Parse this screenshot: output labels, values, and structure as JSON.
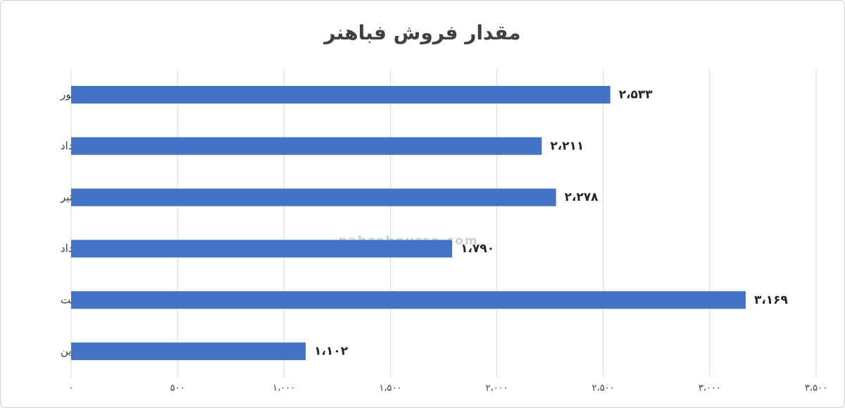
{
  "chart_data": {
    "type": "bar",
    "orientation": "horizontal",
    "title": "مقدار فروش فباهنر",
    "watermark": "nabzebourse.com",
    "categories": [
      "شهریور",
      "مرداد",
      "تیر",
      "خرداد",
      "اردیبهشت",
      "فروردین"
    ],
    "values": [
      2533,
      2211,
      2278,
      1790,
      3169,
      1102
    ],
    "value_labels": [
      "۲،۵۳۳",
      "۲،۲۱۱",
      "۲،۲۷۸",
      "۱،۷۹۰",
      "۳،۱۶۹",
      "۱،۱۰۲"
    ],
    "color": "#4472c4",
    "xlim": [
      0,
      3500
    ],
    "xticks": [
      {
        "value": 0,
        "label": "۰"
      },
      {
        "value": 500,
        "label": "۵۰۰"
      },
      {
        "value": 1000,
        "label": "۱،۰۰۰"
      },
      {
        "value": 1500,
        "label": "۱،۵۰۰"
      },
      {
        "value": 2000,
        "label": "۲،۰۰۰"
      },
      {
        "value": 2500,
        "label": "۲،۵۰۰"
      },
      {
        "value": 3000,
        "label": "۳،۰۰۰"
      },
      {
        "value": 3500,
        "label": "۳،۵۰۰"
      }
    ],
    "grid": true
  }
}
